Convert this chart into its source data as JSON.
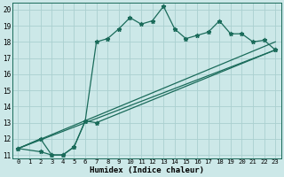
{
  "xlabel": "Humidex (Indice chaleur)",
  "bg_color": "#cce8e8",
  "line_color": "#1a6b5a",
  "grid_color": "#aad0d0",
  "xlim": [
    -0.5,
    23.5
  ],
  "ylim": [
    10.8,
    20.4
  ],
  "xticks": [
    0,
    1,
    2,
    3,
    4,
    5,
    6,
    7,
    8,
    9,
    10,
    11,
    12,
    13,
    14,
    15,
    16,
    17,
    18,
    19,
    20,
    21,
    22,
    23
  ],
  "yticks": [
    11,
    12,
    13,
    14,
    15,
    16,
    17,
    18,
    19,
    20
  ],
  "line1_x": [
    0,
    2,
    3,
    4,
    5,
    6,
    7,
    8,
    9,
    10,
    11,
    12,
    13,
    14,
    15,
    16,
    17,
    18,
    19,
    20,
    21,
    22,
    23
  ],
  "line1_y": [
    11.4,
    12.0,
    11.0,
    11.0,
    11.5,
    13.1,
    18.0,
    18.2,
    18.8,
    19.5,
    19.1,
    19.3,
    20.2,
    18.8,
    18.2,
    18.4,
    18.6,
    19.3,
    18.5,
    18.5,
    18.0,
    18.1,
    17.5
  ],
  "line2_x": [
    0,
    2,
    3,
    4,
    5,
    6,
    7,
    23
  ],
  "line2_y": [
    11.4,
    11.2,
    11.0,
    11.0,
    11.5,
    13.1,
    13.0,
    17.5
  ],
  "regline1_x": [
    0,
    23
  ],
  "regline1_y": [
    11.4,
    17.5
  ],
  "regline2_x": [
    0,
    23
  ],
  "regline2_y": [
    11.4,
    18.0
  ]
}
